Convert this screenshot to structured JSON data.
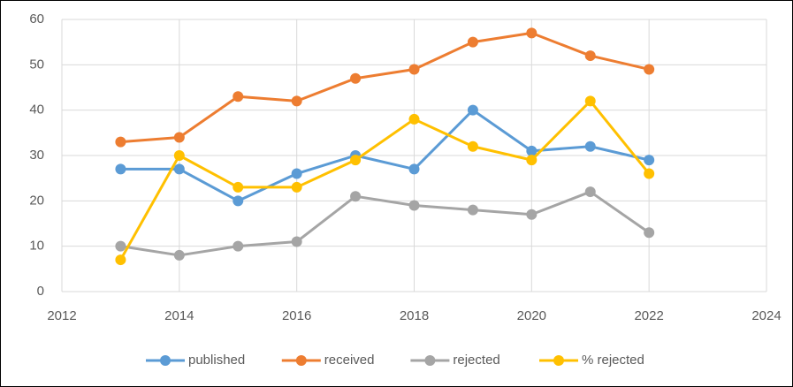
{
  "chart_data": {
    "type": "line",
    "x": [
      2013,
      2014,
      2015,
      2016,
      2017,
      2018,
      2019,
      2020,
      2021,
      2022
    ],
    "series": [
      {
        "name": "published",
        "color": "#5b9bd5",
        "values": [
          27,
          27,
          20,
          26,
          30,
          27,
          40,
          31,
          32,
          29
        ]
      },
      {
        "name": "received",
        "color": "#ed7d31",
        "values": [
          33,
          34,
          43,
          42,
          47,
          49,
          55,
          57,
          52,
          49
        ]
      },
      {
        "name": "rejected",
        "color": "#a5a5a5",
        "values": [
          10,
          8,
          10,
          11,
          21,
          19,
          18,
          17,
          22,
          13
        ]
      },
      {
        "name": "% rejected",
        "color": "#ffc000",
        "values": [
          7,
          30,
          23,
          23,
          29,
          38,
          32,
          29,
          42,
          26
        ]
      }
    ],
    "xlim": [
      2012,
      2024
    ],
    "xticks": [
      2012,
      2014,
      2016,
      2018,
      2020,
      2022,
      2024
    ],
    "ylim": [
      0,
      60
    ],
    "yticks": [
      0,
      10,
      20,
      30,
      40,
      50,
      60
    ],
    "grid": true,
    "legend": "bottom"
  }
}
